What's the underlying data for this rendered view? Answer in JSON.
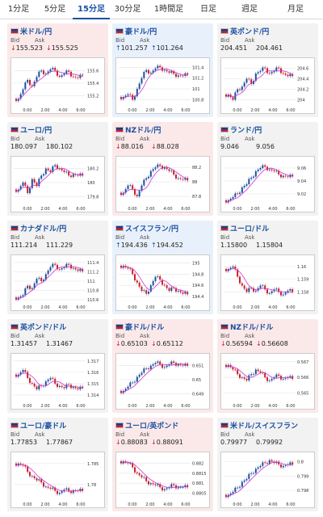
{
  "tabs": [
    "1分足",
    "5分足",
    "15分足",
    "30分足",
    "1時間足",
    "日足",
    "週足",
    "月足"
  ],
  "active_tab": 2,
  "bid_label": "Bid",
  "ask_label": "Ask",
  "colors": {
    "up_candle": "#1a4fa0",
    "down_candle": "#c8202a",
    "ma_line": "#cc33cc"
  },
  "x_ticks": [
    "0:00",
    "2:00",
    "4:00",
    "6:00"
  ],
  "cards": [
    {
      "name": "米ドル/円",
      "flag": "us-jp-flag",
      "dir": "down",
      "bid": "155.523",
      "ask": "155.525",
      "yticks": [
        "155.6",
        "155.4",
        "155.2"
      ],
      "lo": 155.05,
      "hi": 155.72,
      "closes": [
        155.15,
        155.3,
        155.45,
        155.35,
        155.5,
        155.6,
        155.55,
        155.62,
        155.6,
        155.5,
        155.55,
        155.58,
        155.5,
        155.48,
        155.52
      ]
    },
    {
      "name": "豪ドル/円",
      "flag": "au-jp-flag",
      "dir": "up",
      "bid": "101.257",
      "ask": "101.264",
      "yticks": [
        "101.4",
        "101.2",
        "101",
        "100.8"
      ],
      "lo": 100.7,
      "hi": 101.48,
      "closes": [
        100.85,
        100.9,
        100.8,
        101.0,
        101.2,
        101.35,
        101.3,
        101.38,
        101.4,
        101.35,
        101.3,
        101.28,
        101.25,
        101.24,
        101.26
      ]
    },
    {
      "name": "英ポンド/円",
      "flag": "gb-jp-flag",
      "dir": "neutral",
      "bid": "204.451",
      "ask": "204.461",
      "yticks": [
        "204.6",
        "204.4",
        "204.2",
        "204"
      ],
      "lo": 203.9,
      "hi": 204.7,
      "closes": [
        204.1,
        204.0,
        204.2,
        204.25,
        204.4,
        204.3,
        204.5,
        204.55,
        204.6,
        204.5,
        204.55,
        204.6,
        204.5,
        204.45,
        204.45
      ]
    },
    {
      "name": "ユーロ/円",
      "flag": "eu-jp-flag",
      "dir": "neutral",
      "bid": "180.097",
      "ask": "180.102",
      "yticks": [
        "180.2",
        "180",
        "179.8"
      ],
      "lo": 179.7,
      "hi": 180.3,
      "closes": [
        179.9,
        180.0,
        179.85,
        180.05,
        179.95,
        180.1,
        180.2,
        180.15,
        180.25,
        180.2,
        180.15,
        180.1,
        180.12,
        180.1,
        180.1
      ]
    },
    {
      "name": "NZドル/円",
      "flag": "nz-jp-flag",
      "dir": "down",
      "bid": "88.016",
      "ask": "88.028",
      "yticks": [
        "88.2",
        "88",
        "87.8"
      ],
      "lo": 87.7,
      "hi": 88.28,
      "closes": [
        87.85,
        87.95,
        87.9,
        87.8,
        87.95,
        88.05,
        88.15,
        88.2,
        88.22,
        88.2,
        88.15,
        88.1,
        88.05,
        88.03,
        88.02
      ]
    },
    {
      "name": "ランド/円",
      "flag": "za-jp-flag",
      "dir": "neutral",
      "bid": "9.046",
      "ask": "9.056",
      "yticks": [
        "9.06",
        "9.04",
        "9.02"
      ],
      "lo": 9.005,
      "hi": 9.07,
      "closes": [
        9.01,
        9.015,
        9.02,
        9.03,
        9.035,
        9.045,
        9.055,
        9.06,
        9.062,
        9.058,
        9.055,
        9.05,
        9.048,
        9.046,
        9.047
      ]
    },
    {
      "name": "カナダドル/円",
      "flag": "ca-jp-flag",
      "dir": "neutral",
      "bid": "111.214",
      "ask": "111.229",
      "yticks": [
        "111.4",
        "111.2",
        "111",
        "110.8",
        "110.6"
      ],
      "lo": 110.55,
      "hi": 111.45,
      "closes": [
        110.65,
        110.7,
        110.9,
        110.85,
        111.05,
        111.0,
        111.15,
        111.3,
        111.35,
        111.25,
        111.3,
        111.35,
        111.28,
        111.22,
        111.21
      ]
    },
    {
      "name": "スイスフラン/円",
      "flag": "ch-jp-flag",
      "dir": "up",
      "bid": "194.436",
      "ask": "194.452",
      "yticks": [
        "195",
        "194.8",
        "194.6",
        "194.4"
      ],
      "lo": 194.3,
      "hi": 195.05,
      "closes": [
        194.95,
        194.9,
        194.8,
        194.65,
        194.5,
        194.45,
        194.6,
        194.75,
        194.7,
        194.6,
        194.5,
        194.55,
        194.5,
        194.45,
        194.44
      ]
    },
    {
      "name": "ユーロ/ドル",
      "flag": "eu-us-flag",
      "dir": "neutral",
      "bid": "1.15800",
      "ask": "1.15804",
      "yticks": [
        "1.16",
        "1.159",
        "1.158"
      ],
      "lo": 1.1572,
      "hi": 1.1605,
      "closes": [
        1.1598,
        1.16,
        1.1592,
        1.1585,
        1.158,
        1.1583,
        1.1581,
        1.1585,
        1.1582,
        1.1579,
        1.1582,
        1.158,
        1.1578,
        1.1581,
        1.158
      ]
    },
    {
      "name": "英ポンド/ドル",
      "flag": "gb-us-flag",
      "dir": "neutral",
      "bid": "1.31457",
      "ask": "1.31467",
      "yticks": [
        "1.317",
        "1.316",
        "1.315",
        "1.314"
      ],
      "lo": 1.3135,
      "hi": 1.3172,
      "closes": [
        1.3158,
        1.3162,
        1.3155,
        1.315,
        1.3145,
        1.3148,
        1.3152,
        1.3155,
        1.315,
        1.3148,
        1.3146,
        1.3149,
        1.3147,
        1.3145,
        1.3146
      ]
    },
    {
      "name": "豪ドル/ドル",
      "flag": "au-us-flag",
      "dir": "down",
      "bid": "0.65103",
      "ask": "0.65112",
      "yticks": [
        "0.651",
        "0.65",
        "0.649"
      ],
      "lo": 0.6485,
      "hi": 0.6515,
      "closes": [
        0.6492,
        0.6495,
        0.6498,
        0.6502,
        0.6505,
        0.6508,
        0.651,
        0.6512,
        0.6511,
        0.6509,
        0.6511,
        0.6512,
        0.6511,
        0.651,
        0.651
      ]
    },
    {
      "name": "NZドル/ドル",
      "flag": "nz-us-flag",
      "dir": "down",
      "bid": "0.56594",
      "ask": "0.56608",
      "yticks": [
        "0.567",
        "0.566",
        "0.565"
      ],
      "lo": 0.5645,
      "hi": 0.5672,
      "closes": [
        0.5668,
        0.5665,
        0.5662,
        0.566,
        0.5658,
        0.5662,
        0.5665,
        0.5663,
        0.566,
        0.5658,
        0.566,
        0.5661,
        0.5659,
        0.566,
        0.5659
      ]
    },
    {
      "name": "ユーロ/豪ドル",
      "flag": "eu-au-flag",
      "dir": "neutral",
      "bid": "1.77853",
      "ask": "1.77867",
      "yticks": [
        "1.785",
        "1.78"
      ],
      "lo": 1.7765,
      "hi": 1.7865,
      "closes": [
        1.785,
        1.7845,
        1.783,
        1.782,
        1.781,
        1.7805,
        1.7795,
        1.779,
        1.7785,
        1.778,
        1.7788,
        1.7784,
        1.7786,
        1.7785,
        1.7785
      ]
    },
    {
      "name": "ユーロ/英ポンド",
      "flag": "eu-gb-flag",
      "dir": "down",
      "bid": "0.88083",
      "ask": "0.88091",
      "yticks": [
        "0.882",
        "0.8815",
        "0.881",
        "0.8805"
      ],
      "lo": 0.8802,
      "hi": 0.8823,
      "closes": [
        0.8821,
        0.882,
        0.8818,
        0.8815,
        0.8813,
        0.8811,
        0.881,
        0.8809,
        0.8808,
        0.8807,
        0.8808,
        0.8809,
        0.8808,
        0.8808,
        0.8808
      ]
    },
    {
      "name": "米ドル/スイスフラン",
      "flag": "us-ch-flag",
      "dir": "neutral",
      "bid": "0.79977",
      "ask": "0.79992",
      "yticks": [
        "0.8",
        "0.799",
        "0.798"
      ],
      "lo": 0.7974,
      "hi": 0.8003,
      "closes": [
        0.7977,
        0.7979,
        0.7982,
        0.7986,
        0.7988,
        0.7992,
        0.7995,
        0.7997,
        0.7999,
        0.8001,
        0.7999,
        0.7998,
        0.7997,
        0.7998,
        0.7998
      ]
    }
  ]
}
